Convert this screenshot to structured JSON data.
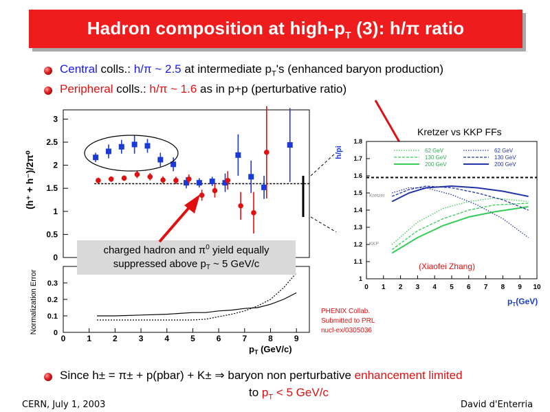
{
  "title": {
    "main": "Hadron composition at high-p",
    "sub": "T",
    "tail": " (3): h/π ratio"
  },
  "bullets": [
    {
      "w1": "Central",
      "w2": " colls.: ",
      "w3": "h/π ~ 2.5",
      "w4": " at intermediate p",
      "sub": "T",
      "w5": "'s (enhanced baryon production)"
    },
    {
      "w1": "Peripheral",
      "w2": " colls.: ",
      "w3": "h/π ~ 1.6",
      "w4": " as in p+p (perturbative ratio)"
    }
  ],
  "conclusion": {
    "pre": "Since h± = π± + p(pbar) + K± ⇒ baryon non perturbative ",
    "red": "enhancement limited",
    "line2a": "to ",
    "line2red": "p",
    "line2sub": "T",
    "line2red2": " < 5 GeV/c"
  },
  "footer": {
    "left": "CERN, July 1, 2003",
    "right": "David d'Enterria"
  },
  "labels": {
    "callout1": "charged hadron and π",
    "callout1_sup": "0",
    "callout1b": " yield equally",
    "callout2": "suppressed above p",
    "callout2_sub": "T",
    "callout2b": " ~ 5 GeV/c",
    "kretzer": "Kretzer vs KKP FFs",
    "xiaofei": "(Xiaofei Zhang)",
    "phenix1": "PHENIX Collab.",
    "phenix2": "Submitted to PRL",
    "phenix3": "nucl-ex/0305036",
    "left_ylabel": "(h⁺ + h⁻)/2π⁰",
    "norm_ylabel": "Normalization Error",
    "left_xlabel": "p",
    "left_xlabel_sub": "T",
    "left_xlabel_tail": "  (GeV/c)",
    "right_ylabel": "h/pi",
    "right_xlabel": "p",
    "right_xlabel_sub": "T",
    "right_xlabel_tail": "(GeV)",
    "kretzer_tag": "Kretzer",
    "kkp_tag": "KKP"
  },
  "chart_data": [
    {
      "type": "scatter",
      "panel": "main ratio",
      "ylim": [
        0,
        3.2
      ],
      "xlim": [
        0,
        9.5
      ],
      "yticks": [
        0,
        0.5,
        1,
        1.5,
        2,
        2.5,
        3
      ],
      "ytick_labels": [
        "0",
        "0.5",
        "1",
        "1.5",
        "2",
        "2.5",
        "3"
      ],
      "reference_line": 1.6,
      "series": [
        {
          "color": "#1a3ad6",
          "marker": "square",
          "points": [
            [
              1.25,
              2.17,
              0.1
            ],
            [
              1.75,
              2.3,
              0.15
            ],
            [
              2.25,
              2.4,
              0.15
            ],
            [
              2.75,
              2.45,
              0.2
            ],
            [
              3.25,
              2.42,
              0.15
            ],
            [
              3.75,
              2.12,
              0.15
            ],
            [
              4.25,
              2.02,
              0.15
            ],
            [
              4.75,
              1.62,
              0.12
            ],
            [
              5.25,
              1.62,
              0.1
            ],
            [
              5.75,
              1.65,
              0.1
            ],
            [
              6.25,
              1.62,
              0.2
            ],
            [
              6.75,
              2.22,
              0.45
            ],
            [
              7.25,
              1.75,
              0.35
            ],
            [
              7.75,
              1.52,
              0.25
            ],
            [
              8.75,
              2.44,
              0.8
            ]
          ]
        },
        {
          "color": "#e01010",
          "marker": "circle",
          "points": [
            [
              1.35,
              1.67,
              0.06
            ],
            [
              1.85,
              1.7,
              0.06
            ],
            [
              2.35,
              1.72,
              0.06
            ],
            [
              2.85,
              1.8,
              0.08
            ],
            [
              3.35,
              1.75,
              0.08
            ],
            [
              3.85,
              1.68,
              0.08
            ],
            [
              4.35,
              1.67,
              0.08
            ],
            [
              4.85,
              1.7,
              0.1
            ],
            [
              5.35,
              1.35,
              0.12
            ],
            [
              5.85,
              1.45,
              0.15
            ],
            [
              6.35,
              1.67,
              0.2
            ],
            [
              6.85,
              1.12,
              0.3
            ],
            [
              7.35,
              0.97,
              0.45
            ],
            [
              7.85,
              2.28,
              1.0
            ]
          ]
        }
      ]
    },
    {
      "type": "line",
      "panel": "Normalization Error",
      "ylim": [
        0,
        0.4
      ],
      "xlim": [
        0,
        9.5
      ],
      "yticks": [
        0,
        0.1,
        0.2,
        0.3
      ],
      "ytick_labels": [
        "0",
        "0.1",
        "0.2",
        "0.3"
      ],
      "xticks": [
        0,
        1,
        2,
        3,
        4,
        5,
        6,
        7,
        8,
        9
      ],
      "xtick_labels": [
        "0",
        "1",
        "2",
        "3",
        "4",
        "5",
        "6",
        "7",
        "8",
        "9"
      ],
      "series": [
        {
          "style": "solid",
          "x": [
            1.3,
            2,
            3,
            4,
            5,
            5.5,
            6,
            6.5,
            7,
            7.5,
            8,
            8.5,
            9
          ],
          "y": [
            0.1,
            0.1,
            0.105,
            0.11,
            0.12,
            0.12,
            0.13,
            0.135,
            0.145,
            0.15,
            0.17,
            0.2,
            0.24
          ]
        },
        {
          "style": "dotted",
          "x": [
            1.3,
            2,
            3,
            4,
            5,
            5.5,
            6,
            6.5,
            7,
            7.5,
            8,
            8.5,
            9
          ],
          "y": [
            0.075,
            0.075,
            0.075,
            0.075,
            0.075,
            0.08,
            0.095,
            0.11,
            0.13,
            0.16,
            0.2,
            0.27,
            0.36
          ]
        }
      ]
    },
    {
      "type": "line",
      "panel": "Kretzer vs KKP",
      "xlim": [
        0,
        10
      ],
      "ylim": [
        1.0,
        1.8
      ],
      "xticks": [
        0,
        1,
        2,
        3,
        4,
        5,
        6,
        7,
        8,
        9,
        10
      ],
      "xtick_labels": [
        "0",
        "1",
        "2",
        "3",
        "4",
        "5",
        "6",
        "7",
        "8",
        "9",
        "10"
      ],
      "yticks": [
        1.0,
        1.1,
        1.2,
        1.3,
        1.4,
        1.5,
        1.6,
        1.7,
        1.8
      ],
      "ytick_labels": [
        "1",
        "1.1",
        "1.2",
        "1.3",
        "1.4",
        "1.5",
        "1.6",
        "1.7",
        "1.8"
      ],
      "reference_line": 1.59,
      "legend_left": [
        "62 GeV",
        "130 GeV",
        "200 GeV"
      ],
      "legend_right": [
        "62 GeV",
        "130 GeV",
        "200 GeV"
      ],
      "series": [
        {
          "color": "#33cc55",
          "style": "dotted",
          "x": [
            1.5,
            3,
            4.5,
            6,
            7.5,
            9.5
          ],
          "y": [
            1.2,
            1.33,
            1.41,
            1.45,
            1.47,
            1.45
          ]
        },
        {
          "color": "#33cc55",
          "style": "dashed",
          "x": [
            1.5,
            3,
            4.5,
            6,
            7.5,
            9.5
          ],
          "y": [
            1.17,
            1.28,
            1.35,
            1.4,
            1.43,
            1.44
          ]
        },
        {
          "color": "#33cc55",
          "style": "solid",
          "x": [
            1.5,
            3,
            4.5,
            6,
            7.5,
            9.5
          ],
          "y": [
            1.15,
            1.24,
            1.31,
            1.36,
            1.39,
            1.42
          ]
        },
        {
          "color": "#2233aa",
          "style": "dotted",
          "x": [
            1.5,
            2.5,
            3.5,
            5,
            6.5,
            8,
            9.5
          ],
          "y": [
            1.5,
            1.53,
            1.53,
            1.49,
            1.43,
            1.35,
            1.24
          ]
        },
        {
          "color": "#2233aa",
          "style": "dashed",
          "x": [
            1.5,
            2.5,
            3.5,
            5,
            6.5,
            8,
            9.5
          ],
          "y": [
            1.48,
            1.52,
            1.54,
            1.53,
            1.5,
            1.46,
            1.4
          ]
        },
        {
          "color": "#2233aa",
          "style": "solid",
          "x": [
            1.5,
            2.5,
            3.5,
            5,
            6.5,
            8,
            9.5
          ],
          "y": [
            1.45,
            1.5,
            1.53,
            1.54,
            1.53,
            1.51,
            1.48
          ]
        }
      ]
    }
  ]
}
